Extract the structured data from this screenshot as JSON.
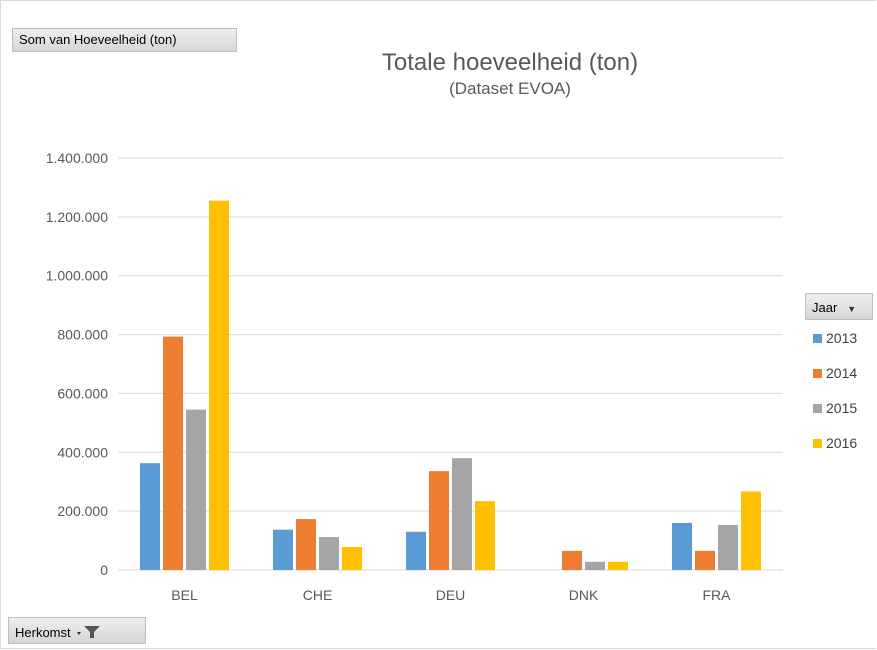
{
  "value_field": {
    "label": "Som van Hoeveelheid (ton)"
  },
  "legend_field": {
    "label": "Jaar"
  },
  "axis_field": {
    "label": "Herkomst"
  },
  "colors": {
    "2013": "#5b9bd5",
    "2014": "#ed7d31",
    "2015": "#a5a5a5",
    "2016": "#ffc000",
    "grid": "#d9d9d9",
    "text": "#595959"
  },
  "chart_data": {
    "type": "bar",
    "title": "Totale hoeveelheid (ton)",
    "subtitle": "(Dataset EVOA)",
    "categories": [
      "BEL",
      "CHE",
      "DEU",
      "DNK",
      "FRA"
    ],
    "ylim": [
      0,
      1400000
    ],
    "yticks": [
      0,
      200000,
      400000,
      600000,
      800000,
      1000000,
      1200000,
      1400000
    ],
    "ytick_labels": [
      "0",
      "200.000",
      "400.000",
      "600.000",
      "800.000",
      "1.000.000",
      "1.200.000",
      "1.400.000"
    ],
    "grid": true,
    "legend_position": "right",
    "series": [
      {
        "name": "2013",
        "values": [
          363000,
          137000,
          130000,
          0,
          160000
        ]
      },
      {
        "name": "2014",
        "values": [
          793000,
          173000,
          336000,
          65000,
          65000
        ]
      },
      {
        "name": "2015",
        "values": [
          545000,
          112000,
          380000,
          28000,
          153000
        ]
      },
      {
        "name": "2016",
        "values": [
          1255000,
          78000,
          234000,
          28000,
          267000
        ]
      }
    ]
  }
}
